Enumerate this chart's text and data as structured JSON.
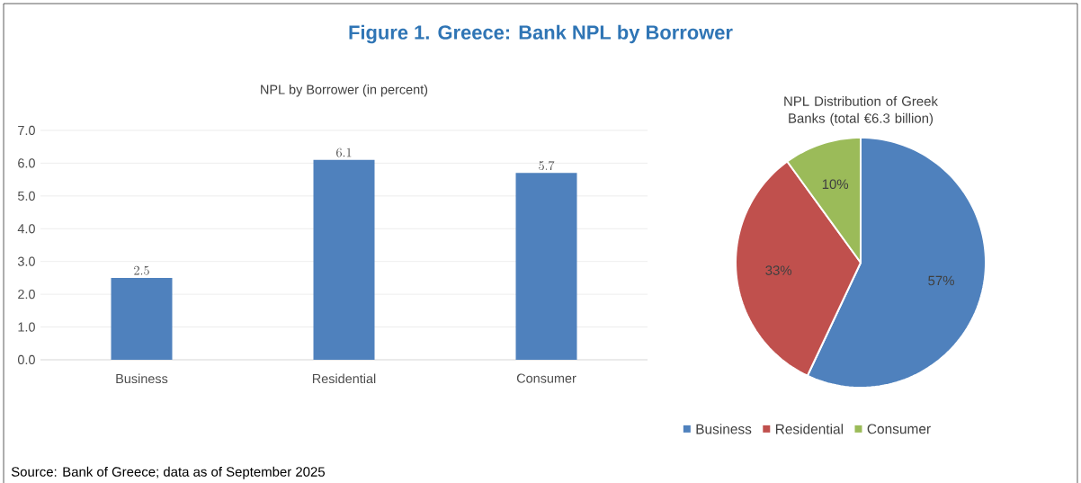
{
  "chart_data": [
    {
      "type": "bar",
      "title": "Figure 1. Greece: Bank NPL by Borrower",
      "subtitle": "NPL by Borrower (in percent)",
      "categories": [
        "Business",
        "Residential",
        "Consumer"
      ],
      "values": [
        2.5,
        6.1,
        5.7
      ],
      "color": "#4f81bd",
      "ylim": [
        0,
        7
      ],
      "yticks": [
        {
          "value": 0,
          "label": "0.0"
        },
        {
          "value": 1,
          "label": "1.0"
        },
        {
          "value": 2,
          "label": "2.0"
        },
        {
          "value": 3,
          "label": "3.0"
        },
        {
          "value": 4,
          "label": "4.0"
        },
        {
          "value": 5,
          "label": "5.0"
        },
        {
          "value": 6,
          "label": "6.0"
        },
        {
          "value": 7,
          "label": "7.0"
        }
      ],
      "grid": "y",
      "data_labels": true,
      "annotations": [
        "Source: Bank of Greece; data as of September 2025"
      ]
    },
    {
      "type": "pie",
      "title": "NPL Distribution of Greek Banks (total €6.3 billion)",
      "categories": [
        "Business",
        "Residential",
        "Consumer"
      ],
      "values": [
        57,
        33,
        10
      ],
      "value_labels": [
        "57%",
        "33%",
        "10%"
      ],
      "colors": [
        "#4f81bd",
        "#c0504d",
        "#9bbb59"
      ],
      "legend": "bottom"
    }
  ]
}
